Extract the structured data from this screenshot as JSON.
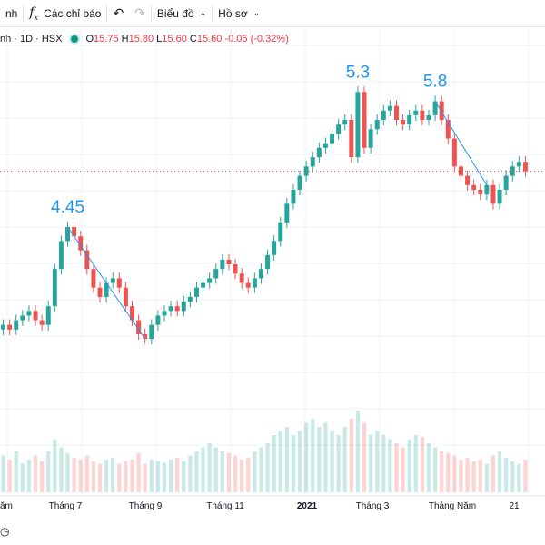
{
  "toolbar": {
    "cut_label": "nh",
    "indicators_label": "Các chỉ báo",
    "chart_label": "Biểu đồ",
    "profile_label": "Hồ sơ"
  },
  "legend": {
    "symbol": "nh · 1D · HSX",
    "o_label": "O",
    "o_value": "15.75",
    "h_label": "H",
    "h_value": "15.80",
    "l_label": "L",
    "l_value": "15.60",
    "c_label": "C",
    "c_value": "15.60",
    "change": "-0.05 (-0.32%)"
  },
  "colors": {
    "up": "#26a69a",
    "down": "#ef5350",
    "annotation": "#2196f3",
    "trendline": "#2196f3",
    "grid": "#f0f3fa",
    "price_line": "#ef5350"
  },
  "chart_data": {
    "type": "line",
    "title": "",
    "xlabel": "",
    "ylabel": "",
    "x_tick_labels": [
      "ăm",
      "Tháng 7",
      "Tháng 9",
      "Tháng 11",
      "2021",
      "Tháng 3",
      "Tháng Năm",
      "21"
    ],
    "ylim": [
      2.5,
      6.4
    ],
    "annotations": [
      "4.45",
      "5.3",
      "5.8"
    ],
    "series": [
      {
        "values": [
          3.4,
          3.35,
          3.45,
          3.5,
          3.55,
          3.45,
          3.4,
          3.6,
          4.0,
          4.3,
          4.45,
          4.35,
          4.2,
          4.0,
          3.8,
          3.7,
          3.85,
          3.9,
          3.8,
          3.6,
          3.45,
          3.3,
          3.25,
          3.4,
          3.5,
          3.55,
          3.6,
          3.55,
          3.65,
          3.7,
          3.8,
          3.85,
          3.9,
          4.0,
          4.1,
          4.05,
          3.95,
          3.85,
          3.8,
          3.9,
          4.0,
          4.15,
          4.3,
          4.5,
          4.7,
          4.85,
          5.0,
          5.1,
          5.2,
          5.3,
          5.35,
          5.45,
          5.55,
          5.6,
          5.2,
          5.9,
          5.3,
          5.5,
          5.6,
          5.7,
          5.75,
          5.6,
          5.55,
          5.65,
          5.7,
          5.6,
          5.65,
          5.8,
          5.6,
          5.4,
          5.1,
          5.0,
          4.9,
          4.85,
          4.8,
          4.9,
          4.7,
          4.85,
          5.0,
          5.1,
          5.15,
          5.05
        ]
      }
    ],
    "volume": [
      0.45,
      0.4,
      0.5,
      0.35,
      0.4,
      0.45,
      0.38,
      0.5,
      0.65,
      0.55,
      0.48,
      0.42,
      0.4,
      0.45,
      0.38,
      0.35,
      0.4,
      0.42,
      0.35,
      0.38,
      0.4,
      0.48,
      0.35,
      0.4,
      0.38,
      0.36,
      0.4,
      0.42,
      0.38,
      0.45,
      0.5,
      0.55,
      0.6,
      0.55,
      0.5,
      0.48,
      0.45,
      0.4,
      0.42,
      0.5,
      0.55,
      0.6,
      0.7,
      0.75,
      0.8,
      0.7,
      0.75,
      0.85,
      0.9,
      0.8,
      0.85,
      0.75,
      0.7,
      0.8,
      0.9,
      1.0,
      0.85,
      0.7,
      0.75,
      0.7,
      0.65,
      0.6,
      0.55,
      0.65,
      0.7,
      0.68,
      0.6,
      0.55,
      0.5,
      0.48,
      0.45,
      0.4,
      0.42,
      0.38,
      0.4,
      0.35,
      0.45,
      0.5,
      0.42,
      0.38,
      0.35,
      0.4
    ]
  }
}
